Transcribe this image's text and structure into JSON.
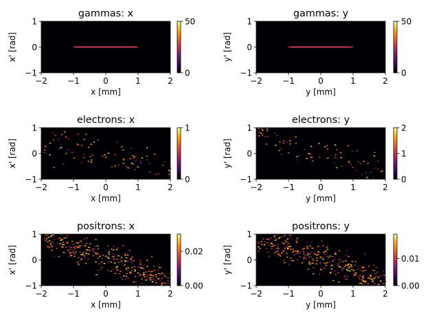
{
  "chart_data": [
    {
      "type": "heatmap",
      "title": "gammas: x",
      "xlabel": "x [mm]",
      "ylabel": "x' [rad]",
      "xlim": [
        -2,
        2
      ],
      "ylim": [
        -1,
        1
      ],
      "xticks": [
        "−2",
        "−1",
        "0",
        "1",
        "2"
      ],
      "yticks": [
        "−1",
        "0",
        "1"
      ],
      "colorbar": {
        "range": [
          0,
          50
        ],
        "ticks": [
          "0",
          "50"
        ]
      },
      "pattern": "line",
      "line": {
        "x_range": [
          -1.0,
          1.0
        ],
        "y": 0.0,
        "value": 50
      }
    },
    {
      "type": "heatmap",
      "title": "gammas: y",
      "xlabel": "y [mm]",
      "ylabel": "y' [rad]",
      "xlim": [
        -2,
        2
      ],
      "ylim": [
        -1,
        1
      ],
      "xticks": [
        "−2",
        "−1",
        "0",
        "1",
        "2"
      ],
      "yticks": [
        "−1",
        "0",
        "1"
      ],
      "colorbar": {
        "range": [
          0,
          50
        ],
        "ticks": [
          "0",
          "50"
        ]
      },
      "pattern": "line",
      "line": {
        "x_range": [
          -1.0,
          1.0
        ],
        "y": 0.0,
        "value": 50
      }
    },
    {
      "type": "heatmap",
      "title": "electrons: x",
      "xlabel": "x [mm]",
      "ylabel": "x' [rad]",
      "xlim": [
        -2,
        2
      ],
      "ylim": [
        -1,
        1
      ],
      "xticks": [
        "−2",
        "−1",
        "0",
        "1",
        "2"
      ],
      "yticks": [
        "−1",
        "0",
        "1"
      ],
      "colorbar": {
        "range": [
          0,
          1
        ],
        "ticks": [
          "0",
          "1"
        ]
      },
      "pattern": "scatter",
      "scatter": {
        "count": 90,
        "slope": -0.35,
        "spread": 0.35,
        "seed": 11
      }
    },
    {
      "type": "heatmap",
      "title": "electrons: y",
      "xlabel": "y [mm]",
      "ylabel": "y' [rad]",
      "xlim": [
        -2,
        2
      ],
      "ylim": [
        -1,
        1
      ],
      "xticks": [
        "−2",
        "−1",
        "0",
        "1",
        "2"
      ],
      "yticks": [
        "−1",
        "0",
        "1"
      ],
      "colorbar": {
        "range": [
          0,
          2
        ],
        "ticks": [
          "0",
          "1",
          "2"
        ]
      },
      "pattern": "scatter",
      "scatter": {
        "count": 85,
        "slope": -0.4,
        "spread": 0.3,
        "seed": 23
      }
    },
    {
      "type": "heatmap",
      "title": "positrons: x",
      "xlabel": "x [mm]",
      "ylabel": "x' [rad]",
      "xlim": [
        -2,
        2
      ],
      "ylim": [
        -1,
        1
      ],
      "xticks": [
        "−2",
        "−1",
        "0",
        "1",
        "2"
      ],
      "yticks": [
        "−1",
        "0",
        "1"
      ],
      "colorbar": {
        "range": [
          0,
          0.03
        ],
        "ticks": [
          "0.00",
          "0.02"
        ],
        "tick_values": [
          0,
          0.02
        ]
      },
      "pattern": "scatter",
      "scatter": {
        "count": 320,
        "slope": -0.45,
        "spread": 0.3,
        "seed": 37
      }
    },
    {
      "type": "heatmap",
      "title": "positrons: y",
      "xlabel": "y [mm]",
      "ylabel": "y' [rad]",
      "xlim": [
        -2,
        2
      ],
      "ylim": [
        -1,
        1
      ],
      "xticks": [
        "−2",
        "−1",
        "0",
        "1",
        "2"
      ],
      "yticks": [
        "−1",
        "0",
        "1"
      ],
      "colorbar": {
        "range": [
          0,
          0.019
        ],
        "ticks": [
          "0.00",
          "0.01"
        ],
        "tick_values": [
          0,
          0.01
        ]
      },
      "pattern": "scatter",
      "scatter": {
        "count": 340,
        "slope": -0.45,
        "spread": 0.3,
        "seed": 53
      }
    }
  ],
  "colormap": {
    "name": "inferno",
    "stops": [
      "#000004",
      "#420a68",
      "#932667",
      "#dd513a",
      "#fca50a",
      "#fcffa4"
    ]
  }
}
